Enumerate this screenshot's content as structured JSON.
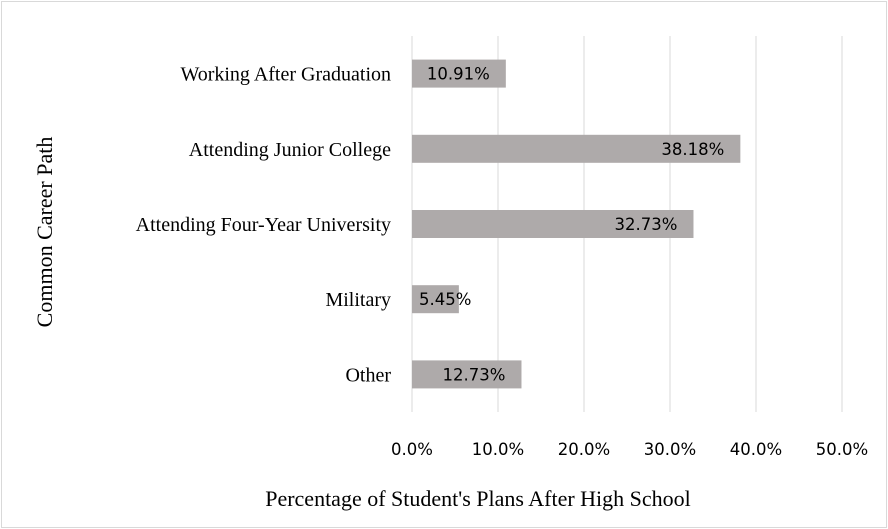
{
  "chart_data": {
    "type": "bar",
    "orientation": "horizontal",
    "categories": [
      "Working After Graduation",
      "Attending Junior College",
      "Attending Four-Year University",
      "Military",
      "Other"
    ],
    "values": [
      10.91,
      38.18,
      32.73,
      5.45,
      12.73
    ],
    "data_labels": [
      "10.91%",
      "38.18%",
      "32.73%",
      "5.45%",
      "12.73%"
    ],
    "xlabel": "Percentage of Student's Plans After High School",
    "ylabel": "Common Career Path",
    "xlim": [
      0,
      50
    ],
    "x_ticks": [
      0,
      10,
      20,
      30,
      40,
      50
    ],
    "x_tick_labels": [
      "0.0%",
      "10.0%",
      "20.0%",
      "30.0%",
      "40.0%",
      "50.0%"
    ],
    "grid": true,
    "legend": "none",
    "bar_color": "#aeaaaa",
    "grid_color": "#d9d9d9"
  }
}
